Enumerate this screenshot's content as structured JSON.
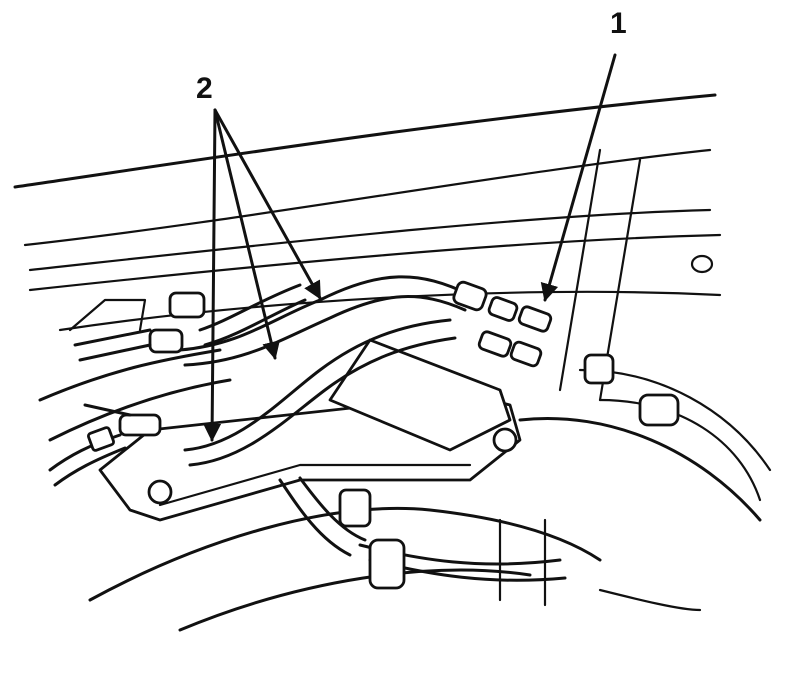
{
  "callouts": [
    {
      "id": "1",
      "text": "1"
    },
    {
      "id": "2",
      "text": "2"
    }
  ],
  "colors": {
    "ink": "#111111",
    "paper": "#ffffff"
  }
}
